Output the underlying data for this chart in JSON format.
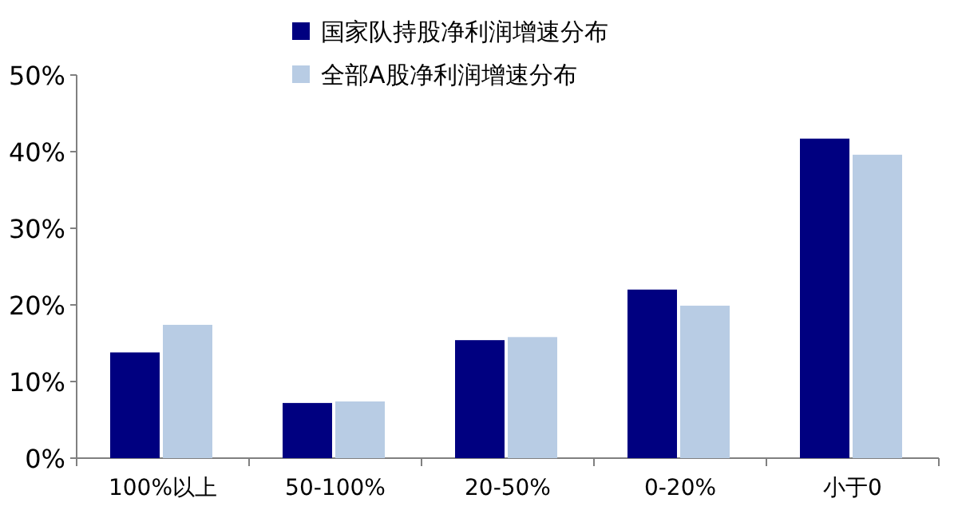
{
  "chart_data": {
    "type": "bar",
    "categories": [
      "100%以上",
      "50-100%",
      "20-50%",
      "0-20%",
      "小于0"
    ],
    "series": [
      {
        "name": "国家队持股净利润增速分布",
        "color": "#000080",
        "values": [
          13.8,
          7.2,
          15.4,
          22.0,
          41.7
        ]
      },
      {
        "name": "全部A股净利润增速分布",
        "color": "#b8cce4",
        "values": [
          17.4,
          7.4,
          15.8,
          19.9,
          39.6
        ]
      }
    ],
    "ylim": [
      0,
      50
    ],
    "yticks": [
      {
        "value": 0,
        "label": "0%"
      },
      {
        "value": 10,
        "label": "10%"
      },
      {
        "value": 20,
        "label": "20%"
      },
      {
        "value": 30,
        "label": "30%"
      },
      {
        "value": 40,
        "label": "40%"
      },
      {
        "value": 50,
        "label": "50%"
      }
    ],
    "grid": false,
    "legend": "top"
  }
}
